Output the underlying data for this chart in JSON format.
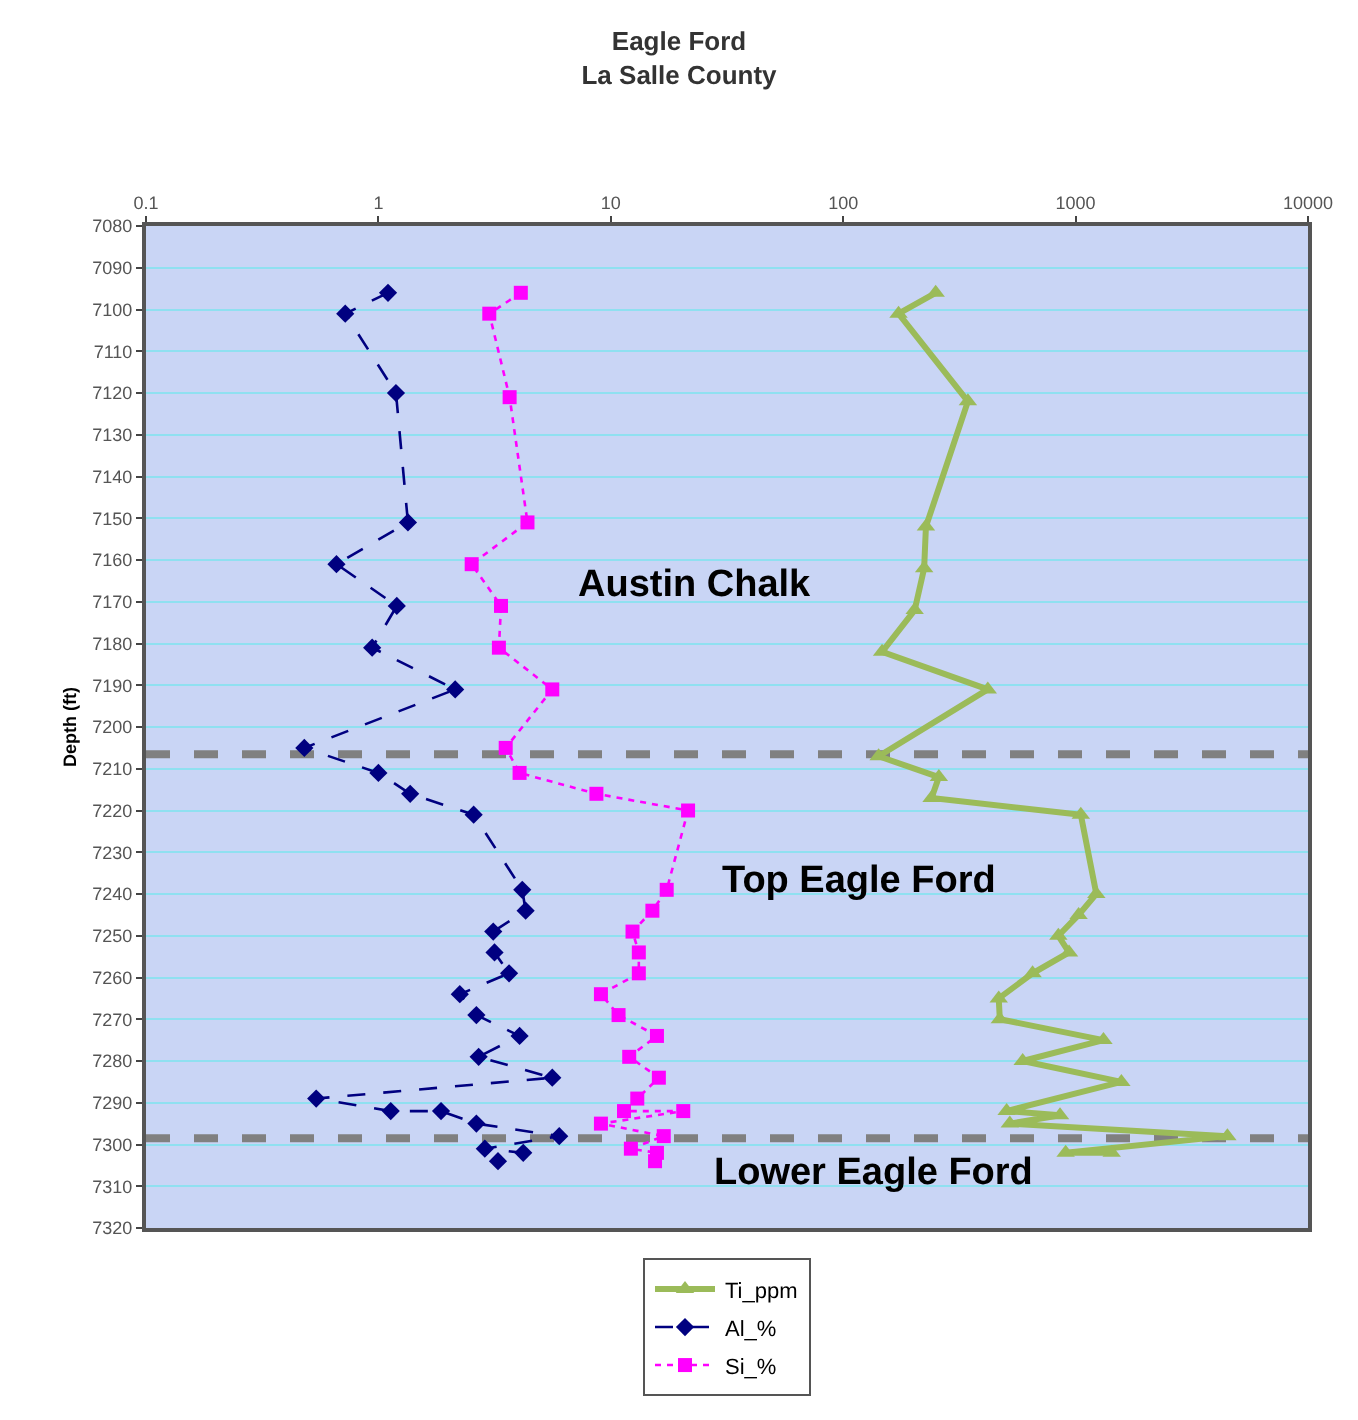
{
  "chart_data": {
    "type": "line",
    "title": "Eagle Ford\nLa Salle County",
    "ylabel": "Depth (ft)",
    "log": "x",
    "xlim": [
      0.1,
      10000
    ],
    "xticks": [
      0.1,
      1,
      10,
      100,
      1000,
      10000
    ],
    "ylim": [
      7320,
      7080
    ],
    "yticks": [
      7080,
      7090,
      7100,
      7110,
      7120,
      7130,
      7140,
      7150,
      7160,
      7170,
      7180,
      7190,
      7200,
      7210,
      7220,
      7230,
      7240,
      7250,
      7260,
      7270,
      7280,
      7290,
      7300,
      7310,
      7320
    ],
    "grid": "y",
    "legend": "bottom",
    "series": [
      {
        "name": "Ti_ppm",
        "color": "#9bbb59",
        "marker": "triangle",
        "line_style": "solid",
        "x": [
          250,
          173,
          344,
          227,
          223,
          203,
          147,
          419,
          142,
          258,
          240,
          1053,
          1228,
          1030,
          843,
          937,
          653,
          467,
          472,
          1318,
          592,
          1574,
          505,
          857,
          521,
          4500,
          906,
          1430
        ],
        "values": [
          7096,
          7101,
          7122,
          7152,
          7162,
          7172,
          7182,
          7191,
          7207,
          7212,
          7217,
          7221,
          7240,
          7245,
          7250,
          7254,
          7259,
          7265,
          7270,
          7275,
          7280,
          7285,
          7292,
          7293,
          7295,
          7298,
          7302,
          7302
        ]
      },
      {
        "name": "Al_%",
        "color": "#000080",
        "marker": "diamond",
        "line_style": "dashed",
        "x": [
          1.1,
          0.72,
          1.19,
          1.34,
          0.66,
          1.2,
          0.94,
          2.14,
          0.48,
          1.0,
          1.37,
          2.57,
          4.16,
          4.3,
          3.12,
          3.16,
          3.65,
          2.24,
          2.64,
          4.05,
          2.7,
          5.6,
          0.54,
          1.13,
          1.86,
          2.64,
          6.0,
          2.87,
          4.2,
          3.27
        ],
        "values": [
          7096,
          7101,
          7120,
          7151,
          7161,
          7171,
          7181,
          7191,
          7205,
          7211,
          7216,
          7221,
          7239,
          7244,
          7249,
          7254,
          7259,
          7264,
          7269,
          7274,
          7279,
          7284,
          7289,
          7292,
          7292,
          7295,
          7298,
          7301,
          7302,
          7304
        ]
      },
      {
        "name": "Si_%",
        "color": "#ff00ff",
        "marker": "square",
        "line_style": "dotted",
        "x": [
          4.1,
          3.0,
          3.67,
          4.38,
          2.52,
          3.37,
          3.3,
          5.6,
          3.53,
          4.05,
          8.67,
          21.5,
          17.4,
          15.1,
          12.4,
          13.2,
          13.2,
          9.07,
          10.8,
          15.8,
          12.0,
          16.1,
          13.0,
          11.4,
          20.5,
          9.07,
          16.9,
          12.2,
          15.8,
          15.5
        ],
        "values": [
          7096,
          7101,
          7121,
          7151,
          7161,
          7171,
          7181,
          7191,
          7205,
          7211,
          7216,
          7220,
          7239,
          7244,
          7249,
          7254,
          7259,
          7264,
          7269,
          7274,
          7279,
          7284,
          7289,
          7292,
          7292,
          7295,
          7298,
          7301,
          7302,
          7304
        ]
      }
    ],
    "ref_lines": [
      {
        "axis": "y",
        "value": 7206.5,
        "color": "#808080",
        "line_style": "dashed"
      },
      {
        "axis": "y",
        "value": 7298.5,
        "color": "#808080",
        "line_style": "dashed"
      }
    ],
    "annotations": [
      "Austin Chalk",
      "Top Eagle Ford",
      "Lower Eagle Ford"
    ]
  }
}
